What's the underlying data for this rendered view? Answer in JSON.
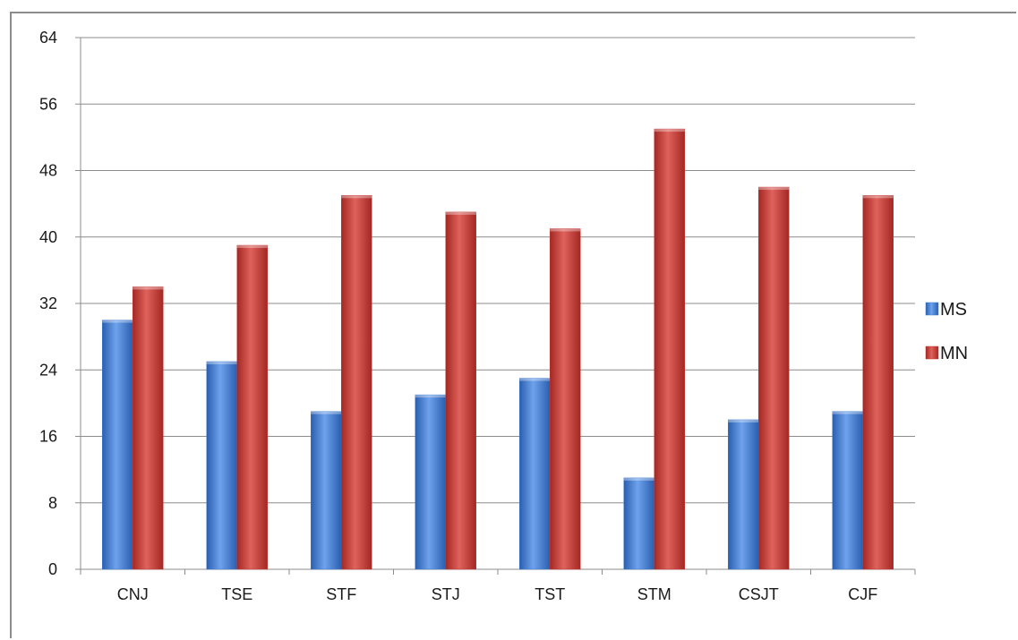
{
  "chart_data": {
    "type": "bar",
    "title": "",
    "xlabel": "",
    "ylabel": "",
    "categories": [
      "CNJ",
      "TSE",
      "STF",
      "STJ",
      "TST",
      "STM",
      "CSJT",
      "CJF"
    ],
    "series": [
      {
        "name": "MS",
        "color": "#3d7ad0",
        "values": [
          30,
          25,
          19,
          21,
          23,
          11,
          18,
          19
        ]
      },
      {
        "name": "MN",
        "color": "#c53a35",
        "values": [
          34,
          39,
          45,
          43,
          41,
          53,
          46,
          45
        ]
      }
    ],
    "ylim": [
      0,
      64
    ],
    "yticks": [
      0,
      8,
      16,
      24,
      32,
      40,
      48,
      56,
      64
    ],
    "grid": true,
    "legend_position": "right"
  }
}
